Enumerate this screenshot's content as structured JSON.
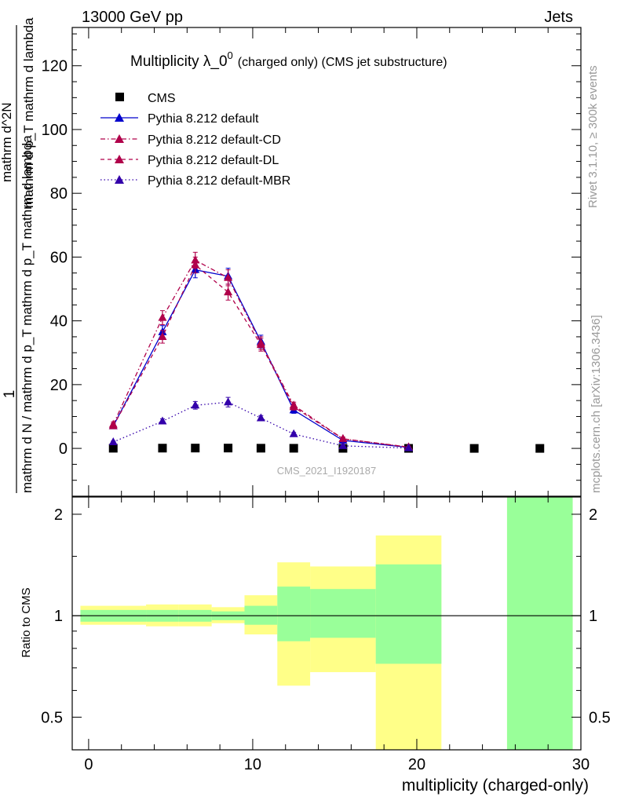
{
  "header": {
    "energy": "13000 GeV pp",
    "category": "Jets"
  },
  "side_labels": {
    "rivet": "Rivet 3.1.10, ≥ 300k events",
    "mcplots": "mcplots.cern.ch [arXiv:1306.3436]"
  },
  "main_ylabel": {
    "numerator_prefix": "1",
    "denominator": "mathrm d N / mathrm d p_T mathrm d p_T mathrm d lambda",
    "right_line": "mathrm d^2N",
    "right_line2": "mathrm d p_T mathrm d lambda"
  },
  "colors": {
    "cms": "#000000",
    "default": "#0000cc",
    "cd": "#b0004a",
    "dl": "#b0004a",
    "mbr": "#3300aa",
    "band_outer": "#ffff88",
    "band_inner": "#99ff99"
  },
  "chart_data": [
    {
      "type": "line",
      "title": "Multiplicity λ_0^0 (charged only) (CMS jet substructure)",
      "title_main": "Multiplicity λ_0",
      "title_sup": "0",
      "title_sub": "(charged only) (CMS jet substructure)",
      "watermark": "CMS_2021_I1920187",
      "xlim": [
        -1,
        30
      ],
      "ylim": [
        -15,
        132
      ],
      "yticks": [
        0,
        20,
        40,
        60,
        80,
        100,
        120
      ],
      "xtick_labels": [],
      "legend_position": "top-left",
      "series": [
        {
          "name": "CMS",
          "key": "cms",
          "marker": "square",
          "x": [
            1.5,
            4.5,
            6.5,
            8.5,
            10.5,
            12.5,
            15.5,
            19.5,
            23.5,
            27.5
          ],
          "y": [
            0.05,
            0.08,
            0.1,
            0.1,
            0.06,
            0.04,
            0.02,
            0.01,
            0.0,
            0.0
          ]
        },
        {
          "name": "Pythia 8.212 default",
          "key": "default",
          "marker": "triangle",
          "line": "solid",
          "x": [
            1.5,
            4.5,
            6.5,
            8.5,
            10.5,
            12.5,
            15.5,
            19.5
          ],
          "y": [
            7.0,
            36.5,
            56.0,
            54.0,
            33.5,
            12.0,
            2.5,
            0.3
          ],
          "err": [
            0.8,
            2.0,
            2.5,
            2.5,
            2.0,
            1.0,
            0.5,
            0.2
          ]
        },
        {
          "name": "Pythia 8.212 default-CD",
          "key": "cd",
          "marker": "triangle",
          "line": "dashdot",
          "x": [
            1.5,
            4.5,
            6.5,
            8.5,
            10.5,
            12.5,
            15.5,
            19.5
          ],
          "y": [
            7.5,
            41.0,
            59.0,
            53.5,
            33.0,
            13.5,
            3.0,
            0.4
          ],
          "err": [
            0.8,
            2.2,
            2.5,
            2.5,
            2.0,
            1.0,
            0.5,
            0.2
          ]
        },
        {
          "name": "Pythia 8.212 default-DL",
          "key": "dl",
          "marker": "triangle",
          "line": "dashed",
          "x": [
            1.5,
            4.5,
            6.5,
            8.5,
            10.5,
            12.5,
            15.5,
            19.5
          ],
          "y": [
            7.0,
            35.0,
            57.5,
            49.0,
            32.5,
            13.0,
            3.0,
            0.4
          ],
          "err": [
            0.8,
            2.0,
            2.5,
            2.5,
            2.0,
            1.0,
            0.5,
            0.2
          ]
        },
        {
          "name": "Pythia 8.212 default-MBR",
          "key": "mbr",
          "marker": "triangle",
          "line": "dotted",
          "x": [
            1.5,
            4.5,
            6.5,
            8.5,
            10.5,
            12.5,
            15.5,
            19.5
          ],
          "y": [
            2.0,
            8.5,
            13.5,
            14.5,
            9.5,
            4.5,
            0.8,
            0.1
          ],
          "err": [
            0.3,
            0.8,
            1.2,
            1.5,
            0.8,
            0.5,
            0.2,
            0.1
          ]
        }
      ]
    },
    {
      "type": "area",
      "title": "",
      "xlabel": "multiplicity (charged-only)",
      "ylabel": "Ratio to CMS",
      "xlim": [
        -1,
        30
      ],
      "ylim": [
        0.4,
        2.25
      ],
      "xticks": [
        0,
        10,
        20,
        30
      ],
      "yticks": [
        0.5,
        1,
        2
      ],
      "ytick_labels": [
        "0.5",
        "1",
        "2"
      ],
      "reference_line": 1,
      "bands": [
        {
          "x0": -0.5,
          "x1": 3.5,
          "outer": [
            0.94,
            1.07
          ],
          "inner": [
            0.96,
            1.04
          ]
        },
        {
          "x0": 3.5,
          "x1": 5.5,
          "outer": [
            0.93,
            1.08
          ],
          "inner": [
            0.96,
            1.04
          ]
        },
        {
          "x0": 5.5,
          "x1": 7.5,
          "outer": [
            0.93,
            1.08
          ],
          "inner": [
            0.96,
            1.04
          ]
        },
        {
          "x0": 7.5,
          "x1": 9.5,
          "outer": [
            0.95,
            1.06
          ],
          "inner": [
            0.97,
            1.03
          ]
        },
        {
          "x0": 9.5,
          "x1": 11.5,
          "outer": [
            0.88,
            1.15
          ],
          "inner": [
            0.94,
            1.07
          ]
        },
        {
          "x0": 11.5,
          "x1": 13.5,
          "outer": [
            0.62,
            1.44
          ],
          "inner": [
            0.84,
            1.22
          ]
        },
        {
          "x0": 13.5,
          "x1": 17.5,
          "outer": [
            0.68,
            1.4
          ],
          "inner": [
            0.86,
            1.2
          ]
        },
        {
          "x0": 17.5,
          "x1": 21.5,
          "outer": [
            0.35,
            1.73
          ],
          "inner": [
            0.72,
            1.42
          ]
        },
        {
          "x0": 25.5,
          "x1": 29.5,
          "outer": [
            0.35,
            2.3
          ],
          "inner": [
            0.35,
            2.3
          ]
        }
      ]
    }
  ]
}
